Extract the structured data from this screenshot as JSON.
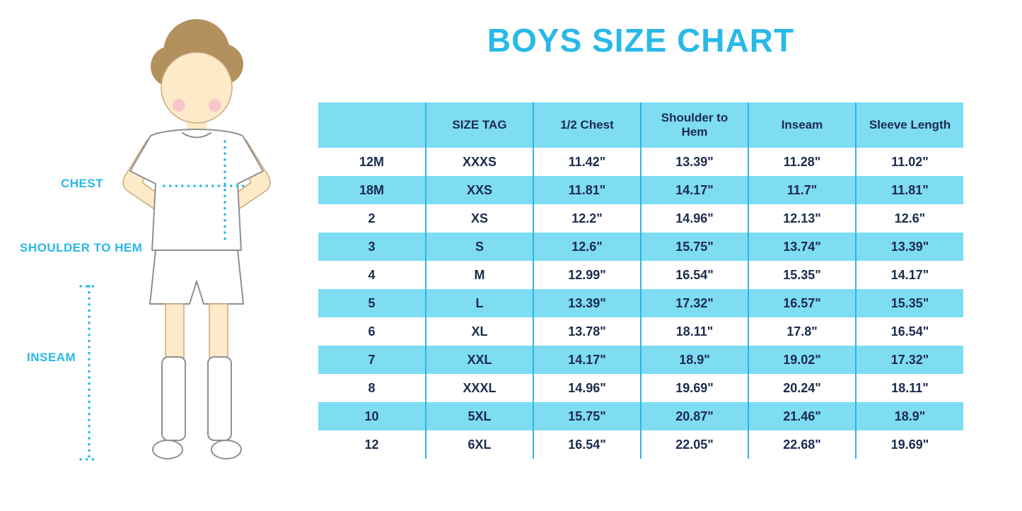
{
  "title": "BOYS SIZE CHART",
  "colors": {
    "accent": "#29b9e8",
    "table_blue": "#7edcf3",
    "table_line": "#2fb5e4",
    "text_dark": "#1c2b4d",
    "skin": "#fdeac8",
    "hair": "#b3915f",
    "blush": "#f7bfca"
  },
  "figure": {
    "labels": {
      "chest": "CHEST",
      "shoulder_to_hem": "SHOULDER TO HEM",
      "inseam": "INSEAM"
    }
  },
  "chart_data": {
    "type": "table",
    "title": "BOYS SIZE CHART",
    "columns": [
      "",
      "SIZE TAG",
      "1/2 Chest",
      "Shoulder to Hem",
      "Inseam",
      "Sleeve Length"
    ],
    "rows": [
      [
        "12M",
        "XXXS",
        "11.42\"",
        "13.39\"",
        "11.28\"",
        "11.02\""
      ],
      [
        "18M",
        "XXS",
        "11.81\"",
        "14.17\"",
        "11.7\"",
        "11.81\""
      ],
      [
        "2",
        "XS",
        "12.2\"",
        "14.96\"",
        "12.13\"",
        "12.6\""
      ],
      [
        "3",
        "S",
        "12.6\"",
        "15.75\"",
        "13.74\"",
        "13.39\""
      ],
      [
        "4",
        "M",
        "12.99\"",
        "16.54\"",
        "15.35\"",
        "14.17\""
      ],
      [
        "5",
        "L",
        "13.39\"",
        "17.32\"",
        "16.57\"",
        "15.35\""
      ],
      [
        "6",
        "XL",
        "13.78\"",
        "18.11\"",
        "17.8\"",
        "16.54\""
      ],
      [
        "7",
        "XXL",
        "14.17\"",
        "18.9\"",
        "19.02\"",
        "17.32\""
      ],
      [
        "8",
        "XXXL",
        "14.96\"",
        "19.69\"",
        "20.24\"",
        "18.11\""
      ],
      [
        "10",
        "5XL",
        "15.75\"",
        "20.87\"",
        "21.46\"",
        "18.9\""
      ],
      [
        "12",
        "6XL",
        "16.54\"",
        "22.05\"",
        "22.68\"",
        "19.69\""
      ]
    ]
  }
}
